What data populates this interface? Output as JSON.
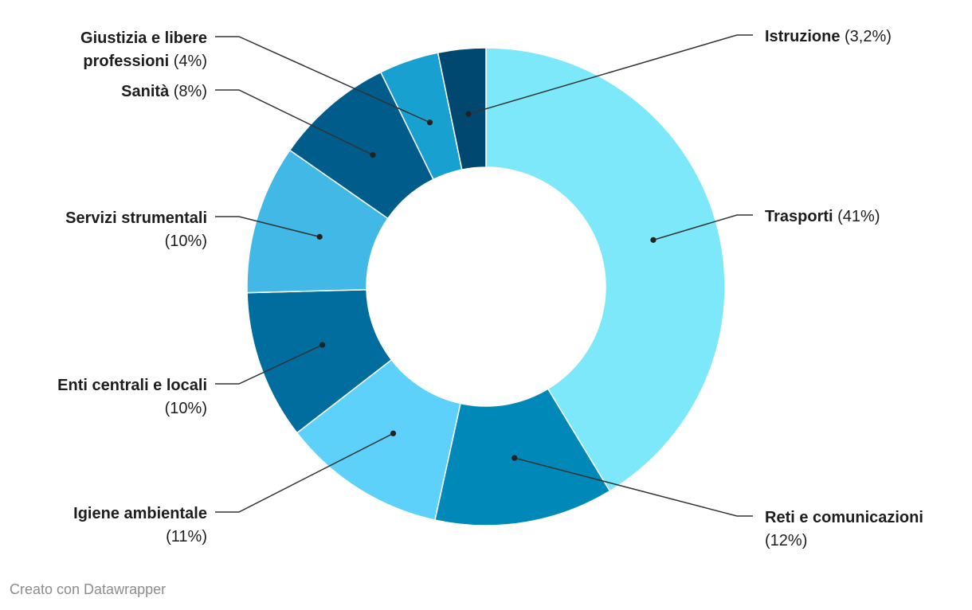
{
  "chart_data": {
    "type": "pie",
    "variant": "donut",
    "title": "",
    "unit": "%",
    "slices": [
      {
        "name": "Trasporti",
        "value": 41,
        "label_pct": "(41%)",
        "color": "#7ee8fb"
      },
      {
        "name": "Reti e comunicazioni",
        "value": 12,
        "label_pct": "(12%)",
        "color": "#0089b8"
      },
      {
        "name": "Igiene ambientale",
        "value": 11,
        "label_pct": "(11%)",
        "color": "#5ed1fa"
      },
      {
        "name": "Enti centrali e locali",
        "value": 10,
        "label_pct": "(10%)",
        "color": "#006d9e"
      },
      {
        "name": "Servizi strumentali",
        "value": 10,
        "label_pct": "(10%)",
        "color": "#42b8e6"
      },
      {
        "name": "Sanità",
        "value": 8,
        "label_pct": "(8%)",
        "color": "#005c8a"
      },
      {
        "name": "Giustizia e libere professioni",
        "value": 4,
        "label_pct": "(4%)",
        "color": "#18a0d0"
      },
      {
        "name": "Istruzione",
        "value": 3.2,
        "label_pct": "(3,2%)",
        "color": "#00486f"
      }
    ]
  },
  "footer": {
    "credit": "Creato con Datawrapper"
  }
}
